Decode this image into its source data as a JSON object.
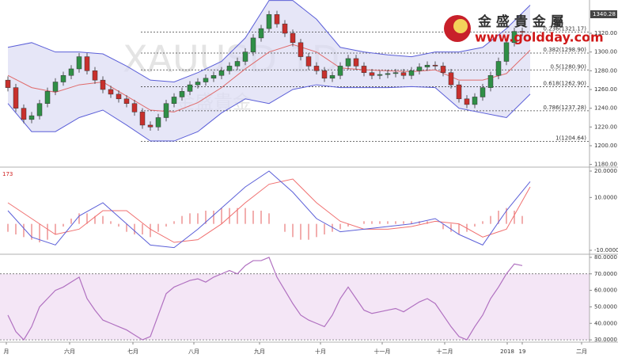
{
  "chart_data": [
    {
      "type": "candlestick",
      "watermark": "XAUUSD 1D",
      "watermark_cn": "金盛貴金",
      "logo_title": "金 盛 貴 金 屬",
      "logo_url": "www.goldday.com",
      "x": [
        0,
        1,
        2,
        3,
        4,
        5,
        6,
        7,
        8,
        9,
        10,
        11,
        12,
        13,
        14,
        15,
        16,
        17,
        18,
        19,
        20,
        21,
        22,
        23,
        24,
        25,
        26,
        27,
        28,
        29,
        30,
        31,
        32,
        33,
        34,
        35,
        36,
        37,
        38,
        39,
        40,
        41,
        42,
        43,
        44,
        45,
        46,
        47,
        48,
        49,
        50,
        51,
        52,
        53,
        54,
        55,
        56,
        57,
        58,
        59,
        60,
        61,
        62,
        63,
        64,
        65
      ],
      "open": [
        1270,
        1262,
        1240,
        1228,
        1232,
        1245,
        1258,
        1268,
        1275,
        1282,
        1295,
        1280,
        1270,
        1260,
        1255,
        1250,
        1245,
        1236,
        1222,
        1220,
        1230,
        1245,
        1252,
        1258,
        1265,
        1268,
        1272,
        1275,
        1280,
        1285,
        1290,
        1300,
        1315,
        1325,
        1340,
        1330,
        1320,
        1310,
        1295,
        1285,
        1280,
        1272,
        1275,
        1285,
        1293,
        1285,
        1278,
        1275,
        1276,
        1277,
        1278,
        1275,
        1280,
        1284,
        1286,
        1285,
        1278,
        1265,
        1250,
        1244,
        1252,
        1262,
        1275,
        1290,
        1310,
        1322
      ],
      "high": [
        1274,
        1266,
        1244,
        1236,
        1249,
        1262,
        1272,
        1279,
        1286,
        1299,
        1299,
        1284,
        1274,
        1264,
        1259,
        1254,
        1249,
        1240,
        1226,
        1234,
        1249,
        1256,
        1262,
        1269,
        1272,
        1276,
        1279,
        1284,
        1289,
        1294,
        1304,
        1319,
        1329,
        1344,
        1344,
        1334,
        1324,
        1314,
        1299,
        1289,
        1284,
        1279,
        1289,
        1297,
        1297,
        1289,
        1282,
        1280,
        1281,
        1282,
        1282,
        1284,
        1288,
        1290,
        1290,
        1289,
        1282,
        1269,
        1254,
        1256,
        1266,
        1279,
        1294,
        1314,
        1326,
        1326
      ],
      "low": [
        1258,
        1236,
        1224,
        1224,
        1228,
        1241,
        1254,
        1264,
        1271,
        1278,
        1276,
        1266,
        1256,
        1251,
        1246,
        1241,
        1232,
        1218,
        1216,
        1216,
        1226,
        1241,
        1248,
        1254,
        1261,
        1264,
        1268,
        1271,
        1276,
        1281,
        1286,
        1296,
        1311,
        1321,
        1326,
        1316,
        1306,
        1291,
        1281,
        1276,
        1268,
        1268,
        1271,
        1281,
        1281,
        1274,
        1271,
        1271,
        1272,
        1273,
        1271,
        1271,
        1276,
        1280,
        1281,
        1274,
        1261,
        1246,
        1240,
        1240,
        1248,
        1258,
        1271,
        1286,
        1306,
        1317
      ],
      "close": [
        1262,
        1240,
        1228,
        1232,
        1245,
        1258,
        1268,
        1275,
        1282,
        1295,
        1280,
        1270,
        1260,
        1255,
        1250,
        1245,
        1236,
        1222,
        1220,
        1230,
        1245,
        1252,
        1258,
        1265,
        1268,
        1272,
        1275,
        1280,
        1285,
        1290,
        1300,
        1315,
        1325,
        1340,
        1330,
        1320,
        1310,
        1295,
        1285,
        1280,
        1272,
        1275,
        1285,
        1293,
        1285,
        1278,
        1275,
        1276,
        1277,
        1278,
        1275,
        1280,
        1284,
        1286,
        1285,
        1278,
        1265,
        1250,
        1244,
        1252,
        1262,
        1275,
        1290,
        1310,
        1322,
        1321
      ],
      "up_color": "#2f8f46",
      "down_color": "#c8302c",
      "bands": {
        "x": [
          0,
          3,
          6,
          9,
          12,
          15,
          18,
          21,
          24,
          27,
          30,
          33,
          36,
          39,
          42,
          45,
          48,
          51,
          54,
          57,
          60,
          63,
          66
        ],
        "upper": [
          1305,
          1310,
          1300,
          1300,
          1298,
          1285,
          1270,
          1268,
          1278,
          1290,
          1315,
          1355,
          1355,
          1335,
          1305,
          1300,
          1297,
          1295,
          1300,
          1300,
          1305,
          1325,
          1350
        ],
        "middle": [
          1275,
          1262,
          1257,
          1265,
          1268,
          1253,
          1238,
          1236,
          1246,
          1262,
          1282,
          1300,
          1308,
          1300,
          1283,
          1281,
          1280,
          1279,
          1281,
          1270,
          1270,
          1277,
          1302
        ],
        "lower": [
          1245,
          1215,
          1215,
          1230,
          1238,
          1222,
          1205,
          1205,
          1215,
          1235,
          1250,
          1245,
          1260,
          1265,
          1262,
          1262,
          1262,
          1263,
          1262,
          1240,
          1235,
          1230,
          1255
        ],
        "color": "#5b5fd8",
        "middle_color": "#e06a6a",
        "fill": "#dcdcf4"
      },
      "fib_levels": [
        {
          "value": 1321.17,
          "label": "0.236(1321.17)"
        },
        {
          "value": 1298.9,
          "label": "0.382(1298.90)"
        },
        {
          "value": 1280.9,
          "label": "0.5(1280.90)"
        },
        {
          "value": 1262.9,
          "label": "0.618(1262.90)"
        },
        {
          "value": 1237.28,
          "label": "0.786(1237.28)"
        },
        {
          "value": 1204.64,
          "label": "1(1204.64)"
        }
      ],
      "price_tag": 1340.28,
      "xlim": [
        -1,
        73.5
      ],
      "ylim": [
        1178,
        1355.5
      ],
      "yticks": [
        {
          "value": 1180,
          "label": "1180.00"
        },
        {
          "value": 1200,
          "label": "1200.00"
        },
        {
          "value": 1220,
          "label": "1220.00"
        },
        {
          "value": 1240,
          "label": "1240.00"
        },
        {
          "value": 1260,
          "label": "1260.00"
        },
        {
          "value": 1280,
          "label": "1280.00"
        },
        {
          "value": 1300,
          "label": "1300.00"
        },
        {
          "value": 1320,
          "label": "1320.00"
        }
      ]
    },
    {
      "type": "macd",
      "label": "173",
      "x": [
        0,
        3,
        6,
        9,
        12,
        15,
        18,
        21,
        24,
        27,
        30,
        33,
        36,
        39,
        42,
        45,
        48,
        51,
        54,
        57,
        60,
        63,
        66
      ],
      "macd": [
        5,
        -5,
        -8,
        3,
        8,
        0,
        -8,
        -9,
        -2,
        6,
        14,
        20,
        12,
        2,
        -3,
        -2,
        -1,
        0,
        2,
        -4,
        -8,
        5,
        16
      ],
      "signal": [
        8,
        2,
        -4,
        -2,
        5,
        5,
        -2,
        -7,
        -6,
        0,
        8,
        15,
        17,
        8,
        1,
        -2,
        -2,
        -1,
        1,
        0,
        -5,
        -2,
        14
      ],
      "hist_x": [
        0,
        1,
        2,
        3,
        4,
        5,
        6,
        7,
        8,
        9,
        10,
        11,
        12,
        13,
        14,
        15,
        16,
        17,
        18,
        19,
        20,
        21,
        22,
        23,
        24,
        25,
        26,
        27,
        28,
        29,
        30,
        31,
        32,
        33,
        34,
        35,
        36,
        37,
        38,
        39,
        40,
        41,
        42,
        43,
        44,
        45,
        46,
        47,
        48,
        49,
        50,
        51,
        52,
        53,
        54,
        55,
        56,
        57,
        58,
        59,
        60,
        61,
        62,
        63,
        64,
        65
      ],
      "histogram": [
        -3,
        -4,
        -5,
        -6,
        -7,
        -6,
        -4,
        -1,
        2,
        4,
        4,
        3,
        3,
        1,
        -1,
        -3,
        -4,
        -4,
        -5,
        -3,
        -1,
        1,
        3,
        4,
        4,
        5,
        5,
        6,
        6,
        6,
        6,
        5,
        5,
        4,
        0,
        -3,
        -5,
        -6,
        -6,
        -5,
        -4,
        -3,
        -2,
        -1,
        0,
        1,
        1,
        1,
        1,
        1,
        1,
        1,
        1,
        1,
        0,
        -2,
        -3,
        -4,
        -3,
        -1,
        1,
        3,
        5,
        6,
        5,
        3
      ],
      "macd_color": "#5b5fd8",
      "signal_color": "#f07070",
      "hist_color": "#e87878",
      "xlim": [
        -1,
        73.5
      ],
      "ylim": [
        -11.2,
        21.2
      ],
      "yticks": [
        {
          "value": -10,
          "label": "-10.0000"
        },
        {
          "value": 10,
          "label": "10.0000"
        },
        {
          "value": 20,
          "label": "20.0000"
        }
      ]
    },
    {
      "type": "rsi",
      "x": [
        0,
        1,
        2,
        3,
        4,
        5,
        6,
        7,
        8,
        9,
        10,
        11,
        12,
        13,
        14,
        15,
        16,
        17,
        18,
        19,
        20,
        21,
        22,
        23,
        24,
        25,
        26,
        27,
        28,
        29,
        30,
        31,
        32,
        33,
        34,
        35,
        36,
        37,
        38,
        39,
        40,
        41,
        42,
        43,
        44,
        45,
        46,
        47,
        48,
        49,
        50,
        51,
        52,
        53,
        54,
        55,
        56,
        57,
        58,
        59,
        60,
        61,
        62,
        63,
        64,
        65
      ],
      "values": [
        45,
        35,
        30,
        38,
        50,
        55,
        60,
        62,
        65,
        68,
        55,
        48,
        42,
        40,
        38,
        36,
        33,
        30,
        32,
        45,
        58,
        62,
        64,
        66,
        67,
        65,
        68,
        70,
        72,
        70,
        75,
        78,
        78,
        80,
        68,
        60,
        52,
        45,
        42,
        40,
        38,
        45,
        55,
        62,
        55,
        48,
        46,
        47,
        48,
        49,
        47,
        50,
        53,
        55,
        52,
        45,
        38,
        32,
        30,
        38,
        45,
        55,
        62,
        70,
        76,
        75
      ],
      "color": "#b070c0",
      "levels": [
        30,
        70
      ],
      "band_fill": "#f4e6f6",
      "xlim": [
        -1,
        73.5
      ],
      "ylim": [
        28.6,
        81.4
      ],
      "yticks": [
        {
          "value": 30,
          "label": "30.0000"
        },
        {
          "value": 40,
          "label": "40.0000"
        },
        {
          "value": 50,
          "label": "50.0000"
        },
        {
          "value": 60,
          "label": "60.0000"
        },
        {
          "value": 70,
          "label": "70.0000"
        },
        {
          "value": 80,
          "label": "80.0000"
        }
      ],
      "xticks": [
        {
          "value": -0.2,
          "label": "月"
        },
        {
          "value": 7.8,
          "label": "六月"
        },
        {
          "value": 15.8,
          "label": "七月"
        },
        {
          "value": 23.5,
          "label": "八月"
        },
        {
          "value": 31.8,
          "label": "九月"
        },
        {
          "value": 39.5,
          "label": "十月"
        },
        {
          "value": 47.3,
          "label": "十一月"
        },
        {
          "value": 55.2,
          "label": "十二月"
        },
        {
          "value": 63.1,
          "label": "2018"
        },
        {
          "value": 65,
          "label": "19"
        },
        {
          "value": 72.5,
          "label": "二月"
        }
      ]
    }
  ]
}
